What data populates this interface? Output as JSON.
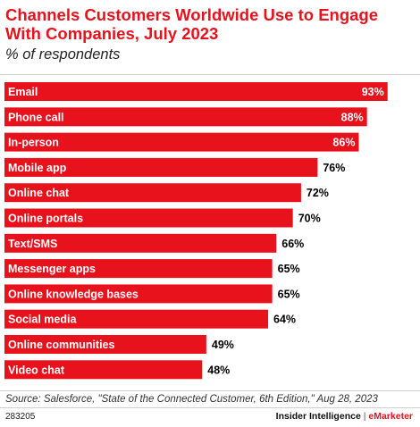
{
  "chart_data": {
    "type": "bar",
    "orientation": "horizontal",
    "title": "Channels Customers Worldwide Use to Engage With Companies, July 2023",
    "subtitle": "% of respondents",
    "categories": [
      "Email",
      "Phone call",
      "In-person",
      "Mobile app",
      "Online chat",
      "Online portals",
      "Text/SMS",
      "Messenger apps",
      "Online knowledge bases",
      "Social media",
      "Online communities",
      "Video chat"
    ],
    "values": [
      93,
      88,
      86,
      76,
      72,
      70,
      66,
      65,
      65,
      64,
      49,
      48
    ],
    "value_labels": [
      "93%",
      "88%",
      "86%",
      "76%",
      "72%",
      "70%",
      "66%",
      "65%",
      "65%",
      "64%",
      "49%",
      "48%"
    ],
    "xlim": [
      0,
      100
    ],
    "bar_color": "#e8121d",
    "grid": false,
    "legend": "none"
  },
  "source": "Source: Salesforce, \"State of the Connected Customer, 6th Edition,\" Aug 28, 2023",
  "footer": {
    "chart_id": "283205",
    "brand_left": "Insider Intelligence",
    "separator": "|",
    "brand_right": "eMarketer"
  }
}
